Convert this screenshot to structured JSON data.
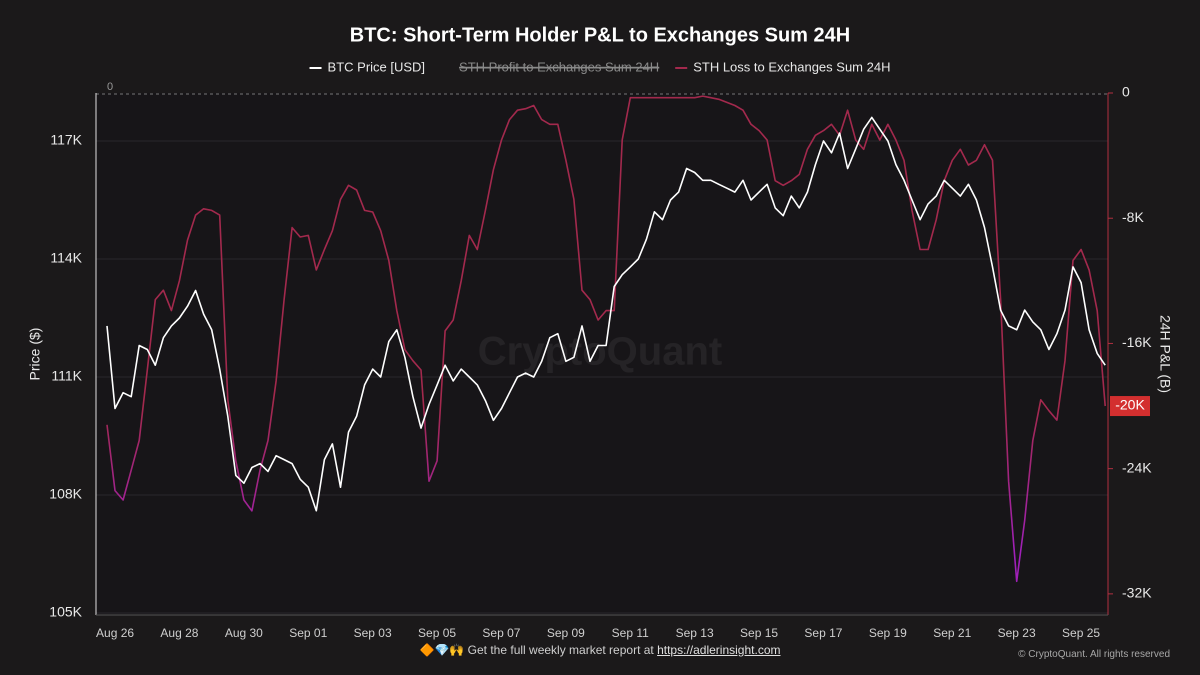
{
  "chart_data": {
    "type": "line",
    "title": "BTC: Short-Term Holder P&L to Exchanges Sum 24H",
    "ylabel": "Price ($)",
    "y2label": "24H P&L (B)",
    "watermark": "CryptoQuant",
    "zero_label": "0",
    "categories": [
      null,
      "Aug 26",
      null,
      null,
      null,
      null,
      null,
      null,
      null,
      "Aug 28",
      null,
      null,
      null,
      null,
      null,
      null,
      null,
      "Aug 30",
      null,
      null,
      null,
      null,
      null,
      null,
      null,
      "Sep 01",
      null,
      null,
      null,
      null,
      null,
      null,
      null,
      "Sep 03",
      null,
      null,
      null,
      null,
      null,
      null,
      null,
      "Sep 05",
      null,
      null,
      null,
      null,
      null,
      null,
      null,
      "Sep 07",
      null,
      null,
      null,
      null,
      null,
      null,
      null,
      "Sep 09",
      null,
      null,
      null,
      null,
      null,
      null,
      null,
      "Sep 11",
      null,
      null,
      null,
      null,
      null,
      null,
      null,
      "Sep 13",
      null,
      null,
      null,
      null,
      null,
      null,
      null,
      "Sep 15",
      null,
      null,
      null,
      null,
      null,
      null,
      null,
      "Sep 17",
      null,
      null,
      null,
      null,
      null,
      null,
      null,
      "Sep 19",
      null,
      null,
      null,
      null,
      null,
      null,
      null,
      "Sep 21",
      null,
      null,
      null,
      null,
      null,
      null,
      null,
      "Sep 23",
      null,
      null,
      null,
      null,
      null,
      null,
      null,
      "Sep 25",
      null,
      null,
      null
    ],
    "ylim": [
      104950,
      118220
    ],
    "yticks": [
      {
        "value": 105000,
        "label": "105K"
      },
      {
        "value": 108000,
        "label": "108K"
      },
      {
        "value": 111000,
        "label": "111K"
      },
      {
        "value": 114000,
        "label": "114K"
      },
      {
        "value": 117000,
        "label": "117K"
      }
    ],
    "y2lim": [
      -33350,
      0
    ],
    "y2ticks": [
      0,
      {
        "value": -8000,
        "label": "-8K"
      },
      {
        "value": -16000,
        "label": "-16K"
      },
      {
        "value": -24000,
        "label": "-24K"
      },
      {
        "value": -32000,
        "label": "-32K"
      }
    ],
    "grid": true,
    "series": [
      {
        "name": "BTC Price [USD]",
        "color": "#ffffff",
        "values": [
          112300,
          110200,
          110600,
          110500,
          111800,
          111700,
          111300,
          112000,
          112300,
          112500,
          112800,
          113200,
          112600,
          112200,
          111200,
          110000,
          108500,
          108300,
          108700,
          108800,
          108600,
          109000,
          108900,
          108800,
          108400,
          108200,
          107600,
          108900,
          109300,
          108200,
          109600,
          110000,
          110800,
          111200,
          111000,
          111900,
          112200,
          111500,
          110500,
          109700,
          110300,
          110800,
          111300,
          110900,
          111200,
          111000,
          110800,
          110400,
          109900,
          110200,
          110600,
          111000,
          111100,
          111000,
          111400,
          112000,
          112100,
          111400,
          111500,
          112300,
          111400,
          111800,
          111800,
          113300,
          113600,
          113800,
          114000,
          114500,
          115200,
          115000,
          115500,
          115700,
          116300,
          116200,
          116000,
          116000,
          115900,
          115800,
          115700,
          116000,
          115500,
          115700,
          115900,
          115300,
          115100,
          115600,
          115300,
          115700,
          116400,
          117000,
          116700,
          117200,
          116300,
          116800,
          117300,
          117600,
          117300,
          117000,
          116400,
          116000,
          115500,
          115000,
          115400,
          115600,
          116000,
          115800,
          115600,
          115900,
          115500,
          114800,
          113800,
          112700,
          112300,
          112200,
          112700,
          112400,
          112200,
          111700,
          112100,
          112700,
          113800,
          113400,
          112200,
          111600,
          111300
        ]
      },
      {
        "name": "STH Loss to Exchanges Sum 24H",
        "color": "#a3294d",
        "low_color": "#a020b8",
        "axis": "y2",
        "last_label": "-20K",
        "values": [
          -21200,
          -25400,
          -26000,
          -24100,
          -22200,
          -17700,
          -13200,
          -12600,
          -13900,
          -12000,
          -9400,
          -7800,
          -7400,
          -7500,
          -7800,
          -19600,
          -23500,
          -26000,
          -26700,
          -24100,
          -22200,
          -18400,
          -13200,
          -8600,
          -9200,
          -9100,
          -11300,
          -10000,
          -8800,
          -6800,
          -5900,
          -6200,
          -7500,
          -7600,
          -8800,
          -10700,
          -13900,
          -16400,
          -17100,
          -17700,
          -24800,
          -23500,
          -15200,
          -14500,
          -12000,
          -9100,
          -10000,
          -7500,
          -4900,
          -3000,
          -1700,
          -1100,
          -1000,
          -800,
          -1700,
          -2000,
          -2000,
          -4300,
          -6800,
          -12600,
          -13200,
          -14500,
          -13900,
          -13900,
          -3000,
          -300,
          -300,
          -300,
          -300,
          -300,
          -300,
          -300,
          -300,
          -300,
          -200,
          -300,
          -400,
          -600,
          -800,
          -1100,
          -2000,
          -2400,
          -3000,
          -5600,
          -5900,
          -5600,
          -5200,
          -3600,
          -2700,
          -2400,
          -2000,
          -2700,
          -1100,
          -3000,
          -3600,
          -2000,
          -3000,
          -2000,
          -3000,
          -4300,
          -7500,
          -10000,
          -10000,
          -8100,
          -5600,
          -4300,
          -3600,
          -4600,
          -4300,
          -3300,
          -4300,
          -13200,
          -24800,
          -31200,
          -27300,
          -22200,
          -19600,
          -20300,
          -20900,
          -17100,
          -10700,
          -10000,
          -11300,
          -13900,
          -20000
        ]
      }
    ],
    "hidden_series": [
      {
        "name": "STH Profit to Exchanges Sum 24H",
        "color": "#8a8a8a"
      }
    ],
    "footer": {
      "icons": "🔶💎🙌",
      "text": "Get the full weekly market report at",
      "link": "https://adlerinsight.com",
      "copyright": "© CryptoQuant. All rights reserved"
    }
  }
}
